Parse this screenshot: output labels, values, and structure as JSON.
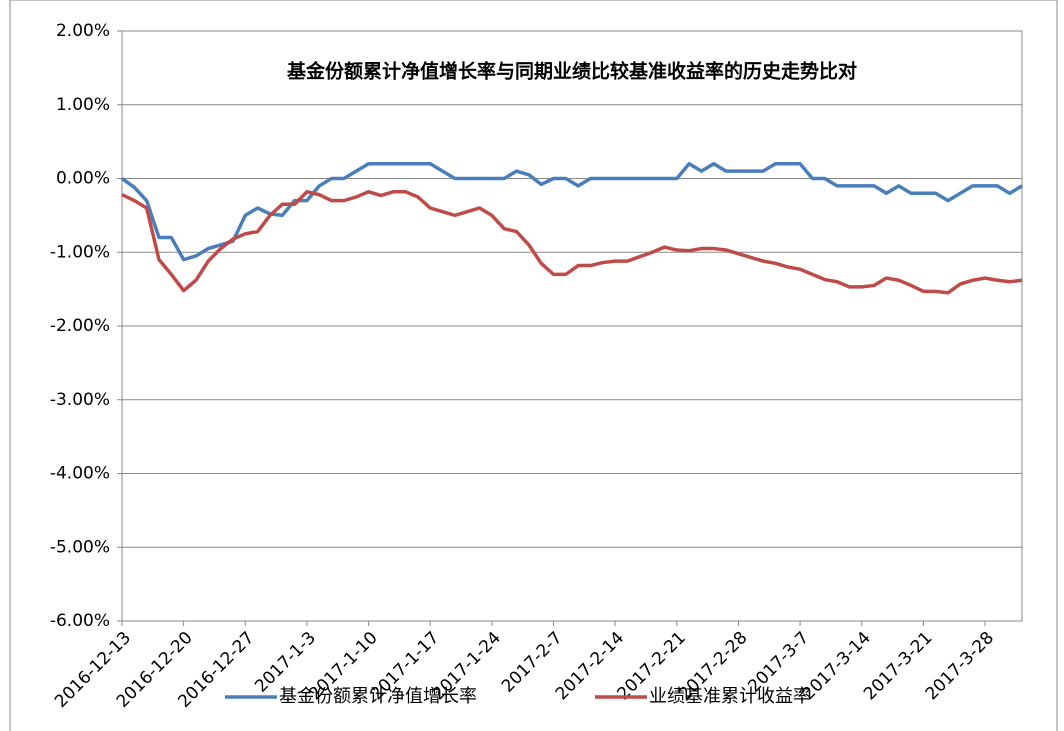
{
  "chart_data": {
    "type": "line",
    "title": "基金份额累计净值增长率与同期业绩比较基准收益率的历史走势比对",
    "categories": [
      "2016-12-13",
      null,
      null,
      null,
      null,
      "2016-12-20",
      null,
      null,
      null,
      null,
      "2016-12-27",
      null,
      null,
      null,
      null,
      "2017-1-3",
      null,
      null,
      null,
      null,
      "2017-1-10",
      null,
      null,
      null,
      null,
      "2017-1-17",
      null,
      null,
      null,
      null,
      "2017-1-24",
      null,
      null,
      null,
      null,
      "2017-2-7",
      null,
      null,
      null,
      null,
      "2017-2-14",
      null,
      null,
      null,
      null,
      "2017-2-21",
      null,
      null,
      null,
      null,
      "2017-2-28",
      null,
      null,
      null,
      null,
      "2017-3-7",
      null,
      null,
      null,
      null,
      "2017-3-14",
      null,
      null,
      null,
      null,
      "2017-3-21",
      null,
      null,
      null,
      null,
      "2017-3-28",
      null,
      null,
      null
    ],
    "series": [
      {
        "name": "基金份额累计净值增长率",
        "color": "#4a7ebb",
        "values": [
          0,
          -0.12,
          -0.3,
          -0.8,
          -0.8,
          -1.1,
          -1.05,
          -0.95,
          -0.9,
          -0.85,
          -0.5,
          -0.4,
          -0.48,
          -0.5,
          -0.3,
          -0.3,
          -0.1,
          0,
          0,
          0.1,
          0.2,
          0.2,
          0.2,
          0.2,
          0.2,
          0.2,
          0.1,
          0,
          0,
          0,
          0,
          0,
          0.1,
          0.05,
          -0.08,
          0,
          0,
          -0.1,
          0,
          0,
          0,
          0,
          0,
          0,
          0,
          0,
          0.2,
          0.1,
          0.2,
          0.1,
          0.1,
          0.1,
          0.1,
          0.2,
          0.2,
          0.2,
          0,
          0,
          -0.1,
          -0.1,
          -0.1,
          -0.1,
          -0.2,
          -0.1,
          -0.2,
          -0.2,
          -0.2,
          -0.3,
          -0.2,
          -0.1,
          -0.1,
          -0.1,
          -0.2,
          -0.1
        ]
      },
      {
        "name": "业绩基准累计收益率",
        "color": "#be4b48",
        "values": [
          -0.22,
          -0.3,
          -0.4,
          -1.1,
          -1.3,
          -1.52,
          -1.38,
          -1.12,
          -0.95,
          -0.82,
          -0.75,
          -0.72,
          -0.5,
          -0.35,
          -0.35,
          -0.18,
          -0.22,
          -0.3,
          -0.3,
          -0.25,
          -0.18,
          -0.23,
          -0.18,
          -0.18,
          -0.25,
          -0.4,
          -0.45,
          -0.5,
          -0.45,
          -0.4,
          -0.5,
          -0.68,
          -0.72,
          -0.9,
          -1.15,
          -1.3,
          -1.3,
          -1.18,
          -1.18,
          -1.14,
          -1.12,
          -1.12,
          -1.06,
          -1.0,
          -0.93,
          -0.97,
          -0.98,
          -0.95,
          -0.95,
          -0.97,
          -1.02,
          -1.07,
          -1.12,
          -1.15,
          -1.2,
          -1.23,
          -1.3,
          -1.37,
          -1.4,
          -1.47,
          -1.47,
          -1.45,
          -1.35,
          -1.38,
          -1.45,
          -1.53,
          -1.53,
          -1.55,
          -1.43,
          -1.38,
          -1.35,
          -1.38,
          -1.4,
          -1.38
        ]
      }
    ],
    "ylim": [
      -6,
      2
    ],
    "yticks": [
      {
        "value": -6,
        "label": "-6.00%"
      },
      {
        "value": -5,
        "label": "-5.00%"
      },
      {
        "value": -4,
        "label": "-4.00%"
      },
      {
        "value": -3,
        "label": "-3.00%"
      },
      {
        "value": -2,
        "label": "-2.00%"
      },
      {
        "value": -1,
        "label": "-1.00%"
      },
      {
        "value": 0,
        "label": "0.00%"
      },
      {
        "value": 1,
        "label": "1.00%"
      },
      {
        "value": 2,
        "label": "2.00%"
      }
    ],
    "grid": true,
    "legend": "bottom"
  }
}
